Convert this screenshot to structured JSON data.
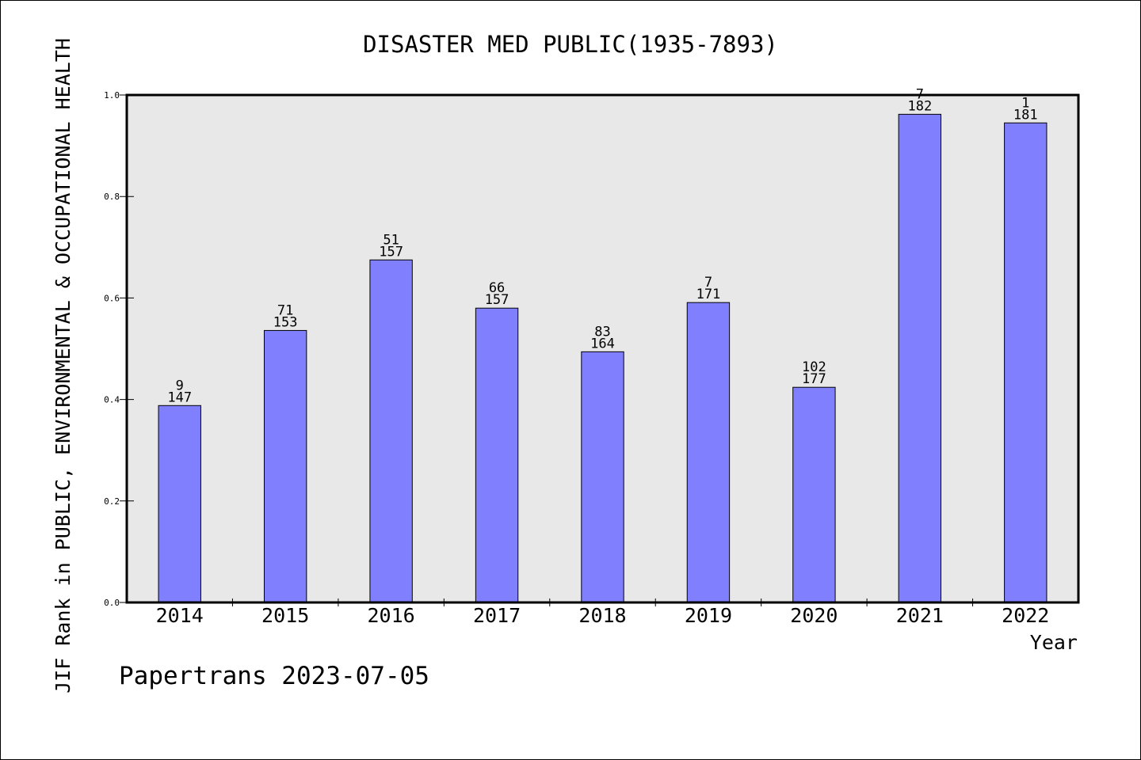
{
  "colors": {
    "bar_fill": "#8080ff",
    "plot_background": "#e8e8e8",
    "frame": "#000000"
  },
  "footer_text": "Papertrans 2023-07-05",
  "chart_data": {
    "type": "bar",
    "title": "DISASTER MED PUBLIC(1935-7893)",
    "xlabel": "Year",
    "ylabel": "JIF Rank in PUBLIC, ENVIRONMENTAL & OCCUPATIONAL HEALTH",
    "ylim": [
      0.0,
      1.0
    ],
    "yticks": [
      "0.0",
      "0.2",
      "0.4",
      "0.6",
      "0.8",
      "1.0"
    ],
    "grid": false,
    "categories": [
      "2014",
      "2015",
      "2016",
      "2017",
      "2018",
      "2019",
      "2020",
      "2021",
      "2022"
    ],
    "values": [
      0.388,
      0.536,
      0.675,
      0.58,
      0.494,
      0.591,
      0.424,
      0.962,
      0.945
    ],
    "rank_labels": [
      "9",
      "71",
      "51",
      "66",
      "83",
      "7",
      "102",
      "7",
      "1"
    ],
    "total_labels": [
      "147",
      "153",
      "157",
      "157",
      "164",
      "171",
      "177",
      "182",
      "181"
    ]
  }
}
